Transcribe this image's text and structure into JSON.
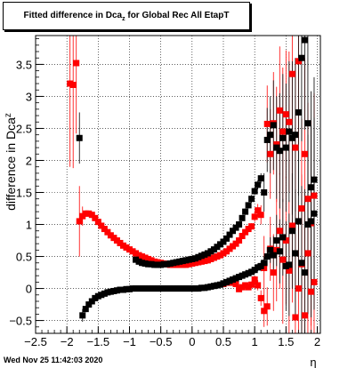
{
  "title": {
    "prefix": "Fitted difference in Dca",
    "sub": "z",
    "suffix": " for Global Rec All EtapT"
  },
  "footer_timestamp": "Wed Nov 25 11:42:03 2020",
  "chart_data": {
    "type": "scatter",
    "title": "Fitted difference in Dca_z for Global Rec All EtapT",
    "xlabel": "η",
    "ylabel": "difference in Dca_z",
    "xlim": [
      -2.5,
      2.05
    ],
    "ylim": [
      -0.7,
      3.95
    ],
    "x_ticks": [
      "−2.5",
      "−2",
      "−1.5",
      "−1",
      "−0.5",
      "0",
      "0.5",
      "1",
      "1.5",
      "2"
    ],
    "y_ticks": [
      "−0.5",
      "0",
      "0.5",
      "1",
      "1.5",
      "2",
      "2.5",
      "3",
      "3.5"
    ],
    "grid": true,
    "colors": {
      "red": "#ff0000",
      "black": "#000000"
    },
    "series": [
      {
        "color": "red",
        "points": [
          [
            -1.95,
            3.2,
            1.3
          ],
          [
            -1.9,
            3.18,
            1.3
          ],
          [
            -1.85,
            3.52,
            1.1
          ],
          [
            -1.8,
            1.05,
            0.55
          ],
          [
            -1.75,
            1.13,
            0.15
          ],
          [
            -1.7,
            1.17,
            0.05
          ],
          [
            -1.65,
            1.17,
            0.03
          ],
          [
            -1.6,
            1.15,
            0.02
          ],
          [
            -1.55,
            1.1,
            0.02
          ],
          [
            -1.5,
            1.04,
            0.02
          ],
          [
            -1.45,
            0.98,
            0.02
          ],
          [
            -1.4,
            0.93,
            0.02
          ],
          [
            -1.35,
            0.88,
            0.02
          ],
          [
            -1.3,
            0.83,
            0.02
          ],
          [
            -1.25,
            0.79,
            0.02
          ],
          [
            -1.2,
            0.75,
            0.02
          ],
          [
            -1.15,
            0.71,
            0.02
          ],
          [
            -1.1,
            0.67,
            0.02
          ],
          [
            -1.05,
            0.64,
            0.02
          ],
          [
            -1.0,
            0.61,
            0.02
          ],
          [
            -0.95,
            0.58,
            0.02
          ],
          [
            -0.9,
            0.55,
            0.02
          ],
          [
            -0.85,
            0.52,
            0.02
          ],
          [
            -0.8,
            0.5,
            0.02
          ],
          [
            -0.75,
            0.48,
            0.02
          ],
          [
            -0.7,
            0.46,
            0.02
          ],
          [
            -0.65,
            0.44,
            0.02
          ],
          [
            -0.6,
            0.42,
            0.02
          ],
          [
            -0.55,
            0.41,
            0.02
          ],
          [
            -0.5,
            0.4,
            0.02
          ],
          [
            -0.45,
            0.39,
            0.02
          ],
          [
            -0.4,
            0.38,
            0.02
          ],
          [
            -0.35,
            0.37,
            0.02
          ],
          [
            -0.3,
            0.37,
            0.02
          ],
          [
            -0.25,
            0.37,
            0.02
          ],
          [
            -0.2,
            0.37,
            0.02
          ],
          [
            -0.15,
            0.37,
            0.02
          ],
          [
            -0.1,
            0.37,
            0.02
          ],
          [
            -0.05,
            0.38,
            0.02
          ],
          [
            0.0,
            0.39,
            0.02
          ],
          [
            0.05,
            0.4,
            0.02
          ],
          [
            0.1,
            0.41,
            0.02
          ],
          [
            0.15,
            0.42,
            0.02
          ],
          [
            0.2,
            0.43,
            0.02
          ],
          [
            0.25,
            0.44,
            0.02
          ],
          [
            0.3,
            0.46,
            0.02
          ],
          [
            0.35,
            0.48,
            0.02
          ],
          [
            0.4,
            0.5,
            0.02
          ],
          [
            0.45,
            0.52,
            0.02
          ],
          [
            0.5,
            0.55,
            0.02
          ],
          [
            0.55,
            0.58,
            0.02
          ],
          [
            0.6,
            0.62,
            0.03
          ],
          [
            0.65,
            0.66,
            0.03
          ],
          [
            0.7,
            0.7,
            0.03
          ],
          [
            0.75,
            0.75,
            0.03
          ],
          [
            0.8,
            0.82,
            0.04
          ],
          [
            0.85,
            0.88,
            0.04
          ],
          [
            0.9,
            0.93,
            0.05
          ],
          [
            0.95,
            0.97,
            0.05
          ],
          [
            1.0,
            1.12,
            0.08
          ],
          [
            1.05,
            1.22,
            0.1
          ],
          [
            1.1,
            1.15,
            0.15
          ],
          [
            1.15,
            0.32,
            0.5
          ],
          [
            1.2,
            2.57,
            0.6
          ],
          [
            1.25,
            2.1,
            0.7
          ],
          [
            1.3,
            2.58,
            0.8
          ],
          [
            1.35,
            2.25,
            0.9
          ],
          [
            1.4,
            2.78,
            1.0
          ],
          [
            1.45,
            2.45,
            1.0
          ],
          [
            1.5,
            2.72,
            1.0
          ],
          [
            1.55,
            2.6,
            1.1
          ],
          [
            1.6,
            3.35,
            1.2
          ],
          [
            1.65,
            2.2,
            1.3
          ],
          [
            1.7,
            3.55,
            1.3
          ],
          [
            1.75,
            1.25,
            1.4
          ],
          [
            1.8,
            2.1,
            1.5
          ],
          [
            1.85,
            1.4,
            1.5
          ],
          [
            1.9,
            1.02,
            1.6
          ],
          [
            1.95,
            1.45,
            1.6
          ]
        ]
      },
      {
        "color": "red",
        "points": [
          [
            0.5,
            0.07,
            0.02
          ],
          [
            0.55,
            0.09,
            0.02
          ],
          [
            0.6,
            0.1,
            0.02
          ],
          [
            0.65,
            0.09,
            0.02
          ],
          [
            0.7,
            0.07,
            0.02
          ],
          [
            0.75,
            -0.01,
            0.03
          ],
          [
            0.8,
            0.02,
            0.03
          ],
          [
            0.85,
            0.05,
            0.03
          ],
          [
            0.9,
            0.02,
            0.04
          ],
          [
            0.95,
            0.06,
            0.05
          ],
          [
            1.0,
            0.14,
            0.06
          ],
          [
            1.05,
            0.05,
            0.08
          ],
          [
            1.1,
            -0.15,
            0.12
          ],
          [
            1.15,
            -0.35,
            0.25
          ],
          [
            1.2,
            -0.28,
            0.3
          ],
          [
            1.25,
            0.62,
            0.5
          ],
          [
            1.3,
            0.25,
            0.6
          ],
          [
            1.35,
            0.6,
            0.8
          ],
          [
            1.4,
            0.9,
            0.9
          ],
          [
            1.45,
            0.45,
            1.0
          ],
          [
            1.5,
            0.75,
            1.0
          ],
          [
            1.55,
            0.28,
            1.1
          ],
          [
            1.6,
            0.98,
            1.2
          ],
          [
            1.65,
            -0.45,
            1.3
          ],
          [
            1.7,
            0.0,
            1.3
          ],
          [
            1.75,
            0.38,
            1.4
          ],
          [
            1.8,
            -0.42,
            1.5
          ],
          [
            1.85,
            0.55,
            1.5
          ],
          [
            1.9,
            -0.05,
            1.6
          ],
          [
            1.95,
            0.1,
            1.6
          ]
        ]
      },
      {
        "color": "black",
        "points": [
          [
            -1.8,
            2.35,
            0.4
          ],
          [
            -1.75,
            -0.42,
            0.1
          ],
          [
            -1.7,
            -0.32,
            0.05
          ],
          [
            -1.65,
            -0.25,
            0.03
          ],
          [
            -1.6,
            -0.2,
            0.02
          ],
          [
            -1.55,
            -0.15,
            0.02
          ],
          [
            -1.5,
            -0.12,
            0.02
          ],
          [
            -1.45,
            -0.1,
            0.02
          ],
          [
            -1.4,
            -0.08,
            0.02
          ],
          [
            -1.35,
            -0.06,
            0.02
          ],
          [
            -1.3,
            -0.05,
            0.02
          ],
          [
            -1.25,
            -0.04,
            0.02
          ],
          [
            -1.2,
            -0.03,
            0.02
          ],
          [
            -1.15,
            -0.02,
            0.02
          ],
          [
            -1.1,
            -0.02,
            0.02
          ],
          [
            -1.05,
            -0.01,
            0.02
          ],
          [
            -1.0,
            -0.01,
            0.02
          ],
          [
            -0.95,
            0.0,
            0.02
          ],
          [
            -0.9,
            0.0,
            0.02
          ],
          [
            -0.85,
            0.0,
            0.02
          ],
          [
            -0.8,
            0.0,
            0.02
          ],
          [
            -0.75,
            0.0,
            0.02
          ],
          [
            -0.7,
            0.0,
            0.02
          ],
          [
            -0.65,
            0.0,
            0.02
          ],
          [
            -0.6,
            0.0,
            0.02
          ],
          [
            -0.55,
            0.0,
            0.02
          ],
          [
            -0.5,
            0.0,
            0.02
          ],
          [
            -0.45,
            0.0,
            0.02
          ],
          [
            -0.4,
            0.0,
            0.02
          ],
          [
            -0.35,
            0.0,
            0.02
          ],
          [
            -0.3,
            0.0,
            0.02
          ],
          [
            -0.25,
            0.0,
            0.02
          ],
          [
            -0.2,
            0.0,
            0.02
          ],
          [
            -0.15,
            0.0,
            0.02
          ],
          [
            -0.1,
            0.0,
            0.02
          ],
          [
            -0.05,
            0.0,
            0.02
          ],
          [
            0.0,
            0.0,
            0.02
          ],
          [
            0.05,
            0.0,
            0.02
          ],
          [
            0.1,
            0.0,
            0.02
          ],
          [
            0.15,
            0.01,
            0.02
          ],
          [
            0.2,
            0.01,
            0.02
          ],
          [
            0.25,
            0.02,
            0.02
          ],
          [
            0.3,
            0.03,
            0.02
          ],
          [
            0.35,
            0.04,
            0.02
          ],
          [
            0.4,
            0.05,
            0.02
          ],
          [
            0.45,
            0.06,
            0.02
          ],
          [
            0.5,
            0.08,
            0.02
          ],
          [
            0.55,
            0.1,
            0.02
          ],
          [
            0.6,
            0.12,
            0.02
          ],
          [
            0.65,
            0.14,
            0.02
          ],
          [
            0.7,
            0.16,
            0.02
          ],
          [
            0.75,
            0.18,
            0.03
          ],
          [
            0.8,
            0.2,
            0.03
          ],
          [
            0.85,
            0.22,
            0.03
          ],
          [
            0.9,
            0.24,
            0.04
          ],
          [
            0.95,
            0.26,
            0.04
          ],
          [
            1.0,
            0.29,
            0.05
          ],
          [
            1.05,
            0.33,
            0.06
          ],
          [
            1.1,
            0.35,
            0.08
          ],
          [
            1.15,
            0.4,
            0.1
          ],
          [
            1.2,
            0.5,
            0.15
          ],
          [
            1.25,
            0.6,
            0.2
          ],
          [
            1.3,
            0.52,
            0.3
          ],
          [
            1.35,
            0.75,
            0.4
          ],
          [
            1.4,
            0.58,
            0.5
          ],
          [
            1.45,
            0.8,
            0.6
          ],
          [
            1.5,
            0.35,
            0.7
          ],
          [
            1.55,
            0.37,
            0.8
          ],
          [
            1.6,
            0.9,
            0.9
          ],
          [
            1.65,
            0.55,
            1.0
          ],
          [
            1.7,
            1.05,
            1.1
          ],
          [
            1.75,
            0.4,
            1.2
          ],
          [
            1.8,
            0.25,
            1.3
          ],
          [
            1.85,
            1.0,
            1.4
          ],
          [
            1.9,
            1.05,
            1.5
          ],
          [
            1.95,
            1.17,
            1.5
          ]
        ]
      },
      {
        "color": "black",
        "points": [
          [
            -0.9,
            0.45,
            0.02
          ],
          [
            -0.85,
            0.42,
            0.02
          ],
          [
            -0.8,
            0.4,
            0.02
          ],
          [
            -0.75,
            0.39,
            0.02
          ],
          [
            -0.7,
            0.38,
            0.02
          ],
          [
            -0.65,
            0.38,
            0.02
          ],
          [
            -0.6,
            0.37,
            0.02
          ],
          [
            -0.55,
            0.37,
            0.02
          ],
          [
            -0.5,
            0.37,
            0.02
          ],
          [
            -0.45,
            0.38,
            0.02
          ],
          [
            -0.4,
            0.38,
            0.02
          ],
          [
            -0.35,
            0.39,
            0.02
          ],
          [
            -0.3,
            0.4,
            0.02
          ],
          [
            -0.25,
            0.41,
            0.02
          ],
          [
            -0.2,
            0.42,
            0.02
          ],
          [
            -0.15,
            0.43,
            0.02
          ],
          [
            -0.1,
            0.44,
            0.02
          ],
          [
            -0.05,
            0.45,
            0.02
          ],
          [
            0.0,
            0.46,
            0.02
          ],
          [
            0.05,
            0.47,
            0.02
          ],
          [
            0.1,
            0.49,
            0.02
          ],
          [
            0.15,
            0.51,
            0.02
          ],
          [
            0.2,
            0.53,
            0.02
          ],
          [
            0.25,
            0.55,
            0.02
          ],
          [
            0.3,
            0.58,
            0.02
          ],
          [
            0.35,
            0.61,
            0.02
          ],
          [
            0.4,
            0.65,
            0.02
          ],
          [
            0.45,
            0.69,
            0.02
          ],
          [
            0.5,
            0.73,
            0.03
          ],
          [
            0.55,
            0.78,
            0.03
          ],
          [
            0.6,
            0.84,
            0.03
          ],
          [
            0.65,
            0.9,
            0.03
          ],
          [
            0.7,
            0.95,
            0.03
          ],
          [
            0.75,
            1.0,
            0.04
          ],
          [
            0.8,
            1.1,
            0.04
          ],
          [
            0.85,
            1.2,
            0.05
          ],
          [
            0.9,
            1.3,
            0.05
          ],
          [
            0.95,
            1.4,
            0.06
          ],
          [
            1.0,
            1.52,
            0.06
          ],
          [
            1.05,
            1.62,
            0.07
          ],
          [
            1.1,
            1.72,
            0.08
          ],
          [
            1.15,
            1.5,
            0.3
          ],
          [
            1.2,
            2.32,
            0.5
          ],
          [
            1.25,
            2.4,
            0.6
          ],
          [
            1.3,
            2.55,
            0.7
          ],
          [
            1.35,
            2.2,
            0.8
          ],
          [
            1.4,
            2.15,
            0.9
          ],
          [
            1.45,
            2.35,
            1.0
          ],
          [
            1.5,
            2.2,
            1.0
          ],
          [
            1.55,
            2.45,
            1.1
          ],
          [
            1.6,
            2.35,
            1.2
          ],
          [
            1.65,
            2.4,
            1.2
          ],
          [
            1.7,
            2.75,
            1.3
          ],
          [
            1.75,
            3.6,
            1.3
          ],
          [
            1.8,
            3.88,
            1.4
          ],
          [
            1.85,
            2.58,
            1.5
          ],
          [
            1.9,
            1.58,
            1.5
          ],
          [
            1.95,
            1.7,
            1.6
          ]
        ]
      }
    ]
  }
}
